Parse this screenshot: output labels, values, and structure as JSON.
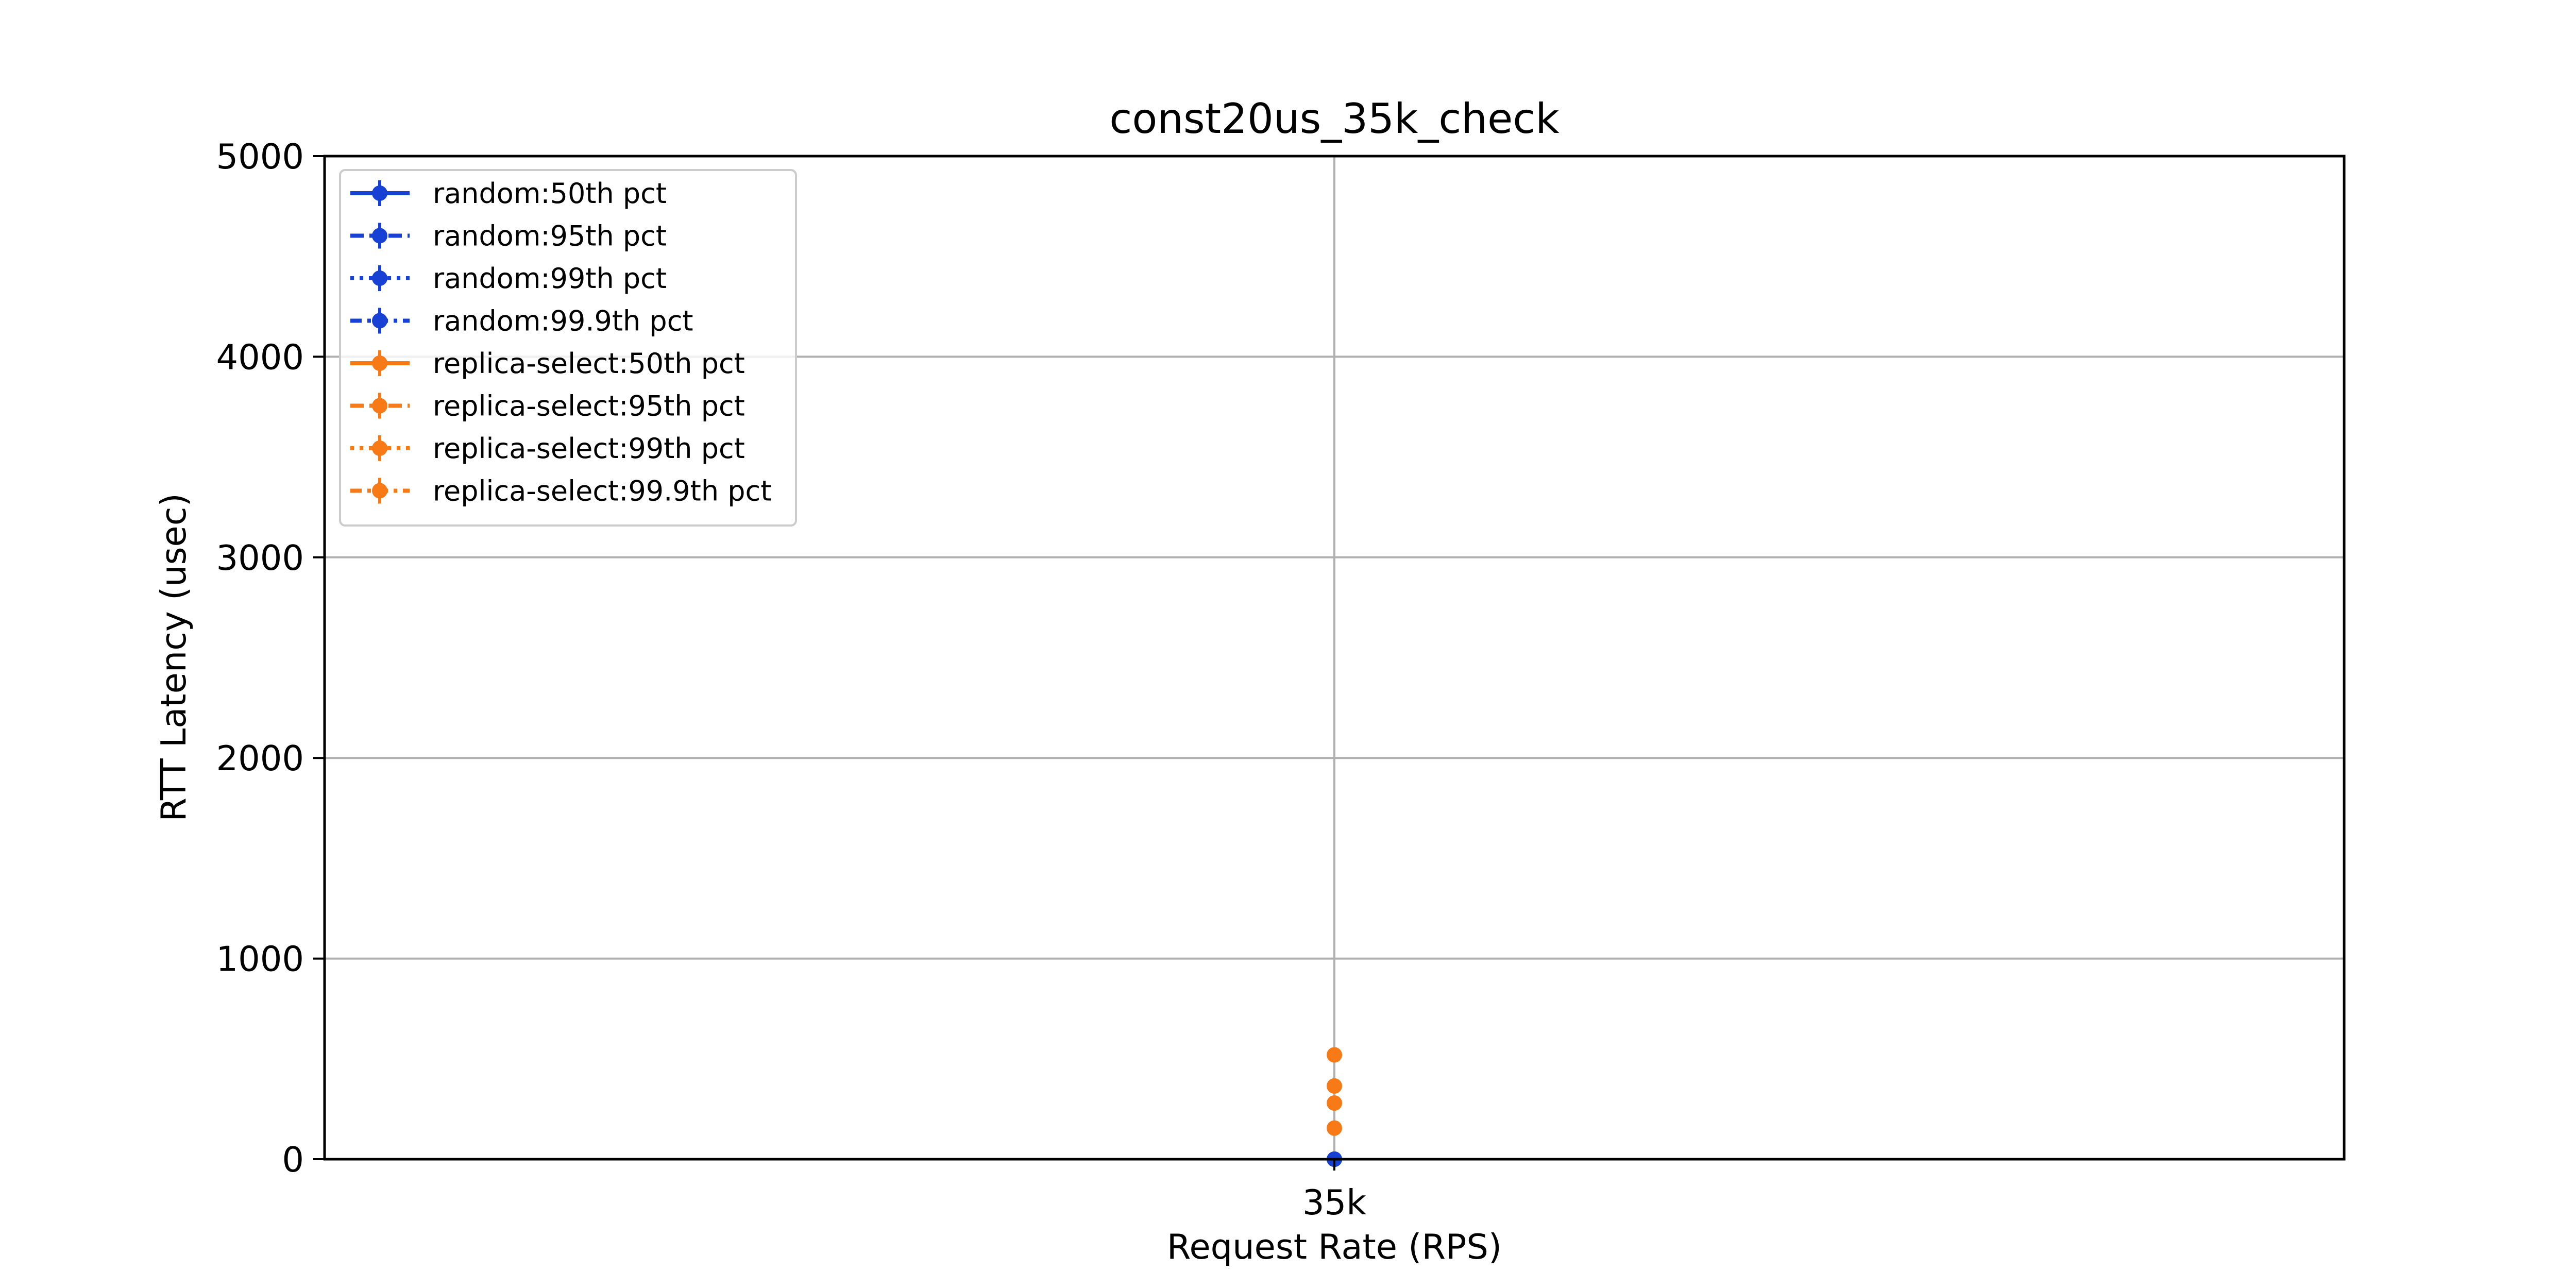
{
  "chart_data": {
    "type": "line",
    "title": "const20us_35k_check",
    "xlabel": "Request Rate (RPS)",
    "ylabel": "RTT Latency (usec)",
    "categories": [
      "35k"
    ],
    "ylim": [
      0,
      5000
    ],
    "yticks": [
      "0",
      "1000",
      "2000",
      "3000",
      "4000",
      "5000"
    ],
    "grid": true,
    "legend_position": "top-left",
    "series": [
      {
        "name": "random:50th pct",
        "values": [
          0
        ],
        "color": "#1740d4",
        "linestyle": "solid"
      },
      {
        "name": "random:95th pct",
        "values": [
          0
        ],
        "color": "#1740d4",
        "linestyle": "dashed"
      },
      {
        "name": "random:99th pct",
        "values": [
          0
        ],
        "color": "#1740d4",
        "linestyle": "dotted"
      },
      {
        "name": "random:99.9th pct",
        "values": [
          0
        ],
        "color": "#1740d4",
        "linestyle": "dashdot"
      },
      {
        "name": "replica-select:50th pct",
        "values": [
          155
        ],
        "color": "#f77a17",
        "linestyle": "solid"
      },
      {
        "name": "replica-select:95th pct",
        "values": [
          280
        ],
        "color": "#f77a17",
        "linestyle": "dashed"
      },
      {
        "name": "replica-select:99th pct",
        "values": [
          365
        ],
        "color": "#f77a17",
        "linestyle": "dotted"
      },
      {
        "name": "replica-select:99.9th pct",
        "values": [
          520
        ],
        "color": "#f77a17",
        "linestyle": "dashdot"
      }
    ]
  }
}
